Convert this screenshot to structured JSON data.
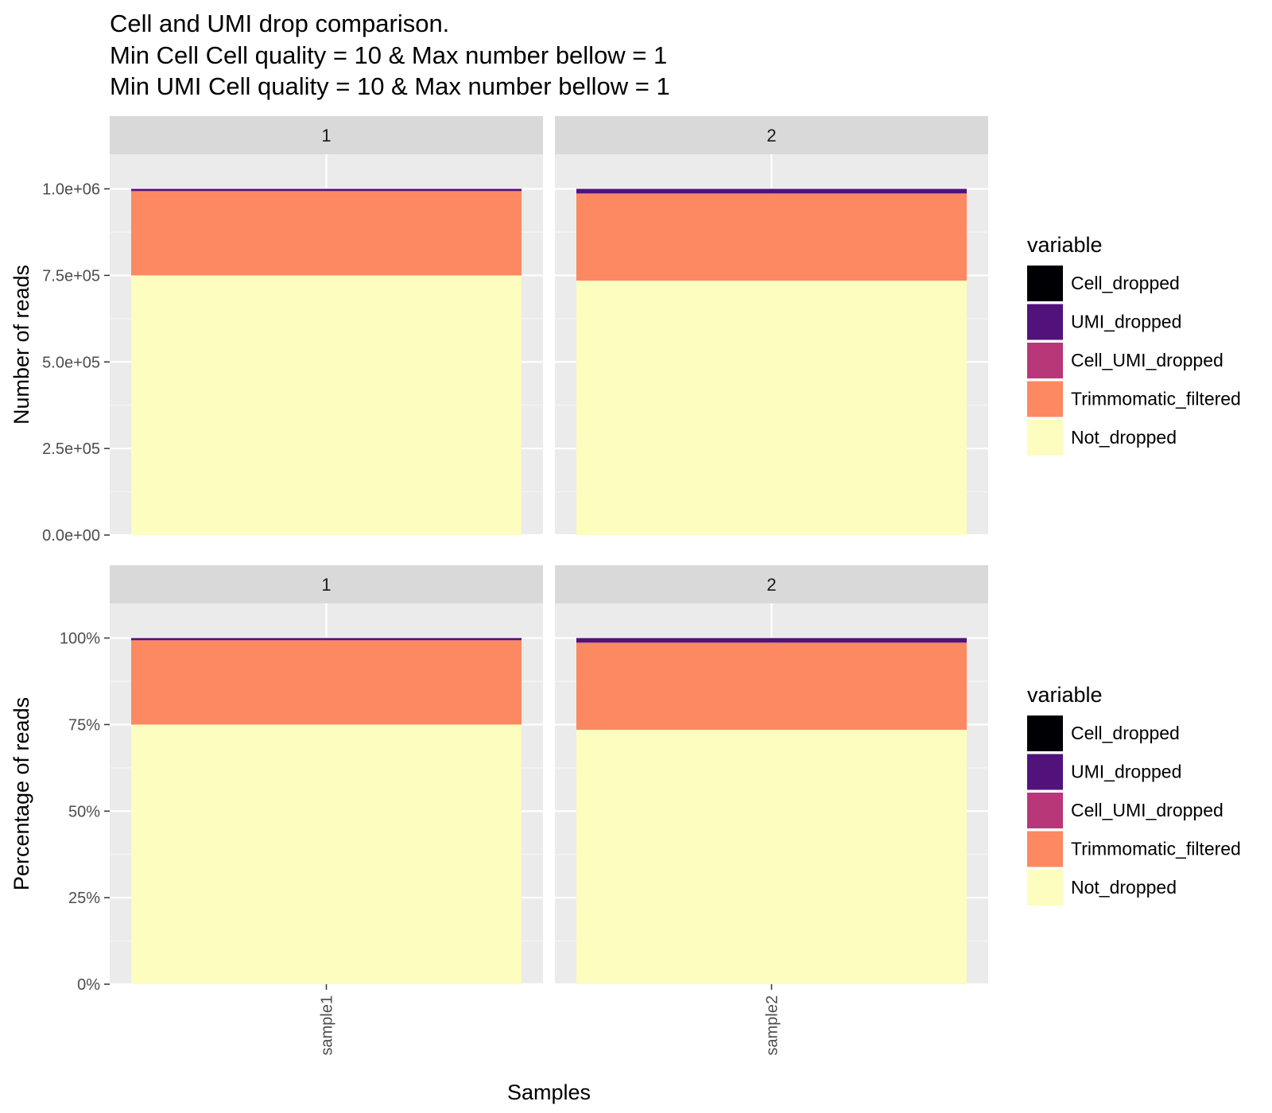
{
  "title_lines": [
    "Cell and UMI drop comparison.",
    "Min Cell Cell quality = 10 & Max number bellow = 1",
    "Min UMI Cell quality = 10 & Max number bellow = 1"
  ],
  "chart_data": [
    {
      "type": "bar",
      "stacked": true,
      "facets": [
        "1",
        "2"
      ],
      "categories": [
        "sample1",
        "sample2"
      ],
      "ylabel": "Number of reads",
      "xlabel": "Samples",
      "ylim": [
        0,
        1100000
      ],
      "yticks": [
        0,
        250000,
        500000,
        750000,
        1000000
      ],
      "ytick_labels": [
        "0.0e+00",
        "2.5e+05",
        "5.0e+05",
        "7.5e+05",
        "1.0e+06"
      ],
      "grid": true,
      "legend_position": "right",
      "legend_title": "variable",
      "series": [
        {
          "name": "Not_dropped",
          "color": "#FCFDBF",
          "values": [
            750000,
            735000
          ]
        },
        {
          "name": "Trimmomatic_filtered",
          "color": "#FC8961",
          "values": [
            243000,
            251000
          ]
        },
        {
          "name": "Cell_UMI_dropped",
          "color": "#B73779",
          "values": [
            1000,
            1000
          ]
        },
        {
          "name": "UMI_dropped",
          "color": "#51127C",
          "values": [
            6000,
            13000
          ]
        },
        {
          "name": "Cell_dropped",
          "color": "#000004",
          "values": [
            0,
            0
          ]
        }
      ]
    },
    {
      "type": "bar",
      "stacked": true,
      "facets": [
        "1",
        "2"
      ],
      "categories": [
        "sample1",
        "sample2"
      ],
      "ylabel": "Percentage of reads",
      "xlabel": "Samples",
      "ylim": [
        0,
        110
      ],
      "yticks": [
        0,
        25,
        50,
        75,
        100
      ],
      "ytick_labels": [
        "0%",
        "25%",
        "50%",
        "75%",
        "100%"
      ],
      "grid": true,
      "legend_position": "right",
      "legend_title": "variable",
      "series": [
        {
          "name": "Not_dropped",
          "color": "#FCFDBF",
          "values": [
            75.0,
            73.5
          ]
        },
        {
          "name": "Trimmomatic_filtered",
          "color": "#FC8961",
          "values": [
            24.3,
            25.1
          ]
        },
        {
          "name": "Cell_UMI_dropped",
          "color": "#B73779",
          "values": [
            0.1,
            0.1
          ]
        },
        {
          "name": "UMI_dropped",
          "color": "#51127C",
          "values": [
            0.6,
            1.3
          ]
        },
        {
          "name": "Cell_dropped",
          "color": "#000004",
          "values": [
            0,
            0
          ]
        }
      ]
    }
  ],
  "legend_order": [
    "Cell_dropped",
    "UMI_dropped",
    "Cell_UMI_dropped",
    "Trimmomatic_filtered",
    "Not_dropped"
  ]
}
